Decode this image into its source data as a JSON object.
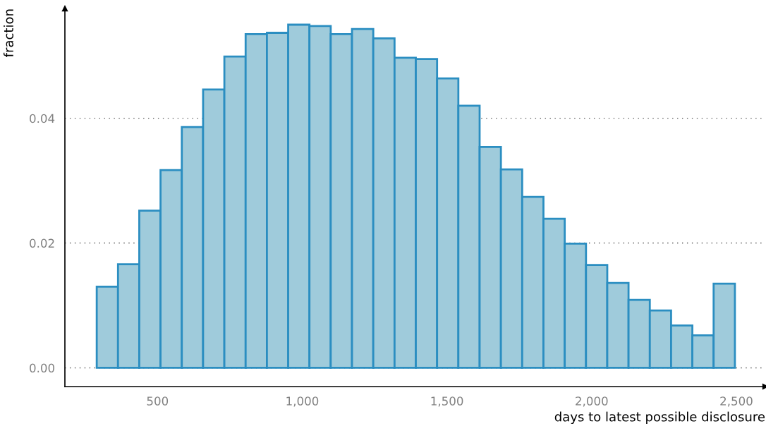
{
  "chart_data": {
    "type": "histogram",
    "xlabel": "days to latest possible disclosure",
    "ylabel": "fraction",
    "bins": [
      290,
      363.5,
      437,
      510.5,
      584,
      657.5,
      731,
      804.5,
      878,
      951.5,
      1025,
      1098.5,
      1172,
      1245.5,
      1319,
      1392.5,
      1466,
      1539.5,
      1613,
      1686.5,
      1760,
      1833.5,
      1907,
      1980.5,
      2054,
      2127.5,
      2201,
      2274.5,
      2348,
      2421.5,
      2495
    ],
    "values": [
      0.013,
      0.0166,
      0.0252,
      0.0317,
      0.0386,
      0.0446,
      0.0499,
      0.0535,
      0.0537,
      0.055,
      0.0548,
      0.0535,
      0.0543,
      0.0528,
      0.0497,
      0.0495,
      0.0464,
      0.042,
      0.0354,
      0.0318,
      0.0274,
      0.0239,
      0.0199,
      0.0165,
      0.0136,
      0.0109,
      0.0092,
      0.0068,
      0.0052,
      0.0135
    ],
    "color": "#9fcbdb",
    "xlim": [
      180,
      2600
    ],
    "ylim": [
      -0.003,
      0.0576
    ],
    "xticks": [
      {
        "value": 500,
        "label": "500"
      },
      {
        "value": 1000,
        "label": "1,000"
      },
      {
        "value": 1500,
        "label": "1,500"
      },
      {
        "value": 2000,
        "label": "2,000"
      },
      {
        "value": 2500,
        "label": "2,500"
      }
    ],
    "yticks": [
      {
        "value": 0,
        "label": "0.00"
      },
      {
        "value": 0.02,
        "label": "0.02"
      },
      {
        "value": 0.04,
        "label": "0.04"
      }
    ],
    "grid": "y"
  }
}
